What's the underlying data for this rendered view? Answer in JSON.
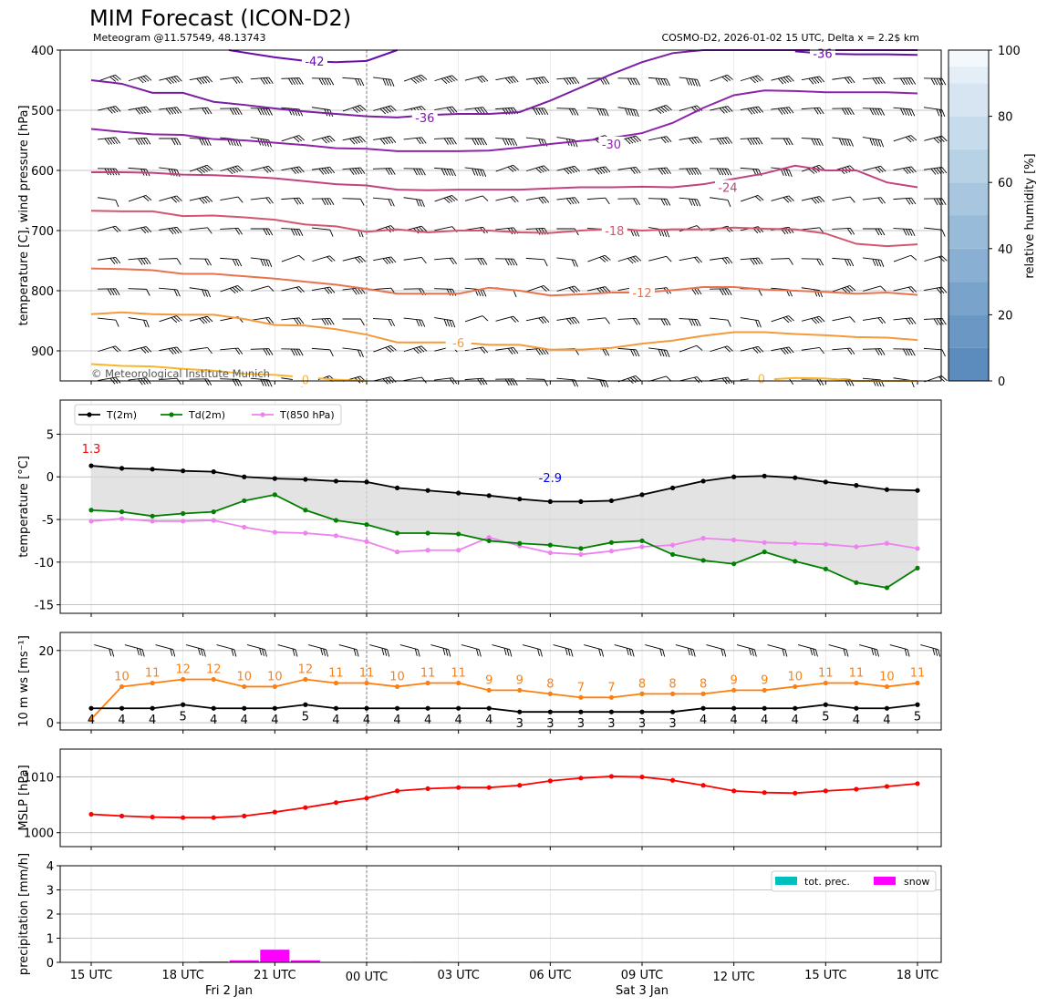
{
  "header": {
    "title": "MIM Forecast (ICON-D2)",
    "subtitle": "Meteogram @11.57549, 48.13743",
    "model_info": "COSMO-D2, 2026-01-02 15 UTC, Delta x = 2.2$ km",
    "copyright": "© Meteorological Institute Munich"
  },
  "time_axis": {
    "hours": [
      15,
      16,
      17,
      18,
      19,
      20,
      21,
      22,
      23,
      24,
      25,
      26,
      27,
      28,
      29,
      30,
      31,
      32,
      33,
      34,
      35,
      36,
      37,
      38,
      39,
      40,
      41,
      42
    ],
    "tick_hours": [
      15,
      18,
      21,
      24,
      27,
      30,
      33,
      36,
      39,
      42
    ],
    "tick_labels": [
      "15 UTC",
      "18 UTC",
      "21 UTC",
      "00 UTC",
      "03 UTC",
      "06 UTC",
      "09 UTC",
      "12 UTC",
      "15 UTC",
      "18 UTC"
    ],
    "day_labels": [
      {
        "hour": 19.5,
        "text": "Fri 2 Jan"
      },
      {
        "hour": 33,
        "text": "Sat 3 Jan"
      }
    ],
    "midnight_hour": 24
  },
  "colors": {
    "t2m": "#000000",
    "td2m": "#008000",
    "t850": "#ee82ee",
    "mslp": "#ff0000",
    "ws_gust": "#ff7f0e",
    "prec": "#00bfbf",
    "snow": "#ff00ff",
    "tmax_label": "#ff0000",
    "tmin_label": "#0000ff",
    "fill": "#d9d9d9",
    "grid": "#b0b0b0"
  },
  "chart_data": [
    {
      "type": "line",
      "panel": "upper_air",
      "title": "MIM Forecast (ICON-D2)",
      "ylabel": "temperature [C], wind pressure [hPa]",
      "ylim": [
        950,
        400
      ],
      "yticks": [
        400,
        500,
        600,
        700,
        800,
        900
      ],
      "isotherm_labels": [
        "-42",
        "-36",
        "-36",
        "-30",
        "-24",
        "-18",
        "-12",
        "-6",
        "0",
        "0"
      ],
      "isotherms": [
        {
          "label": "-42",
          "color": "#6a0dad",
          "x": [
            19.5,
            21,
            22,
            23,
            24,
            25
          ],
          "p": [
            400,
            412,
            418,
            420,
            418,
            400
          ]
        },
        {
          "label": "-36",
          "color": "#7b1fa2",
          "x": [
            15,
            16,
            17,
            18,
            19,
            20,
            21,
            22,
            23,
            24,
            25,
            26,
            27,
            28,
            29,
            30,
            31,
            32,
            33,
            34,
            35,
            36,
            37,
            38,
            39,
            40,
            41,
            42
          ],
          "p": [
            450,
            456,
            471,
            471,
            486,
            491,
            497,
            502,
            506,
            510,
            512,
            508,
            506,
            506,
            503,
            484,
            462,
            440,
            420,
            405,
            400,
            400,
            400,
            400,
            400,
            400,
            400,
            400
          ]
        },
        {
          "label": "-36",
          "color": "#6a0dad",
          "x": [
            38,
            39,
            40,
            41,
            42
          ],
          "p": [
            402,
            406,
            407,
            407,
            408
          ]
        },
        {
          "label": "-30",
          "color": "#8e24aa",
          "x": [
            15,
            16,
            17,
            18,
            19,
            20,
            21,
            22,
            23,
            24,
            25,
            26,
            27,
            28,
            29,
            30,
            31,
            32,
            33,
            34,
            35,
            36,
            37,
            38,
            39,
            40,
            41,
            42
          ],
          "p": [
            531,
            536,
            540,
            541,
            548,
            550,
            554,
            558,
            563,
            564,
            568,
            568,
            568,
            567,
            562,
            556,
            551,
            546,
            538,
            521,
            496,
            475,
            467,
            468,
            470,
            470,
            470,
            472
          ]
        },
        {
          "label": "-24",
          "color": "#c2417f",
          "x": [
            15,
            16,
            17,
            18,
            19,
            20,
            21,
            22,
            23,
            24,
            25,
            26,
            27,
            28,
            29,
            30,
            31,
            32,
            33,
            34,
            35,
            36,
            37,
            38,
            39,
            40,
            41,
            42
          ],
          "p": [
            603,
            603,
            604,
            607,
            608,
            610,
            613,
            618,
            623,
            625,
            632,
            633,
            632,
            632,
            632,
            630,
            628,
            628,
            627,
            628,
            623,
            614,
            605,
            592,
            600,
            600,
            620,
            628
          ]
        },
        {
          "label": "-18",
          "color": "#d1576e",
          "x": [
            15,
            16,
            17,
            18,
            19,
            20,
            21,
            22,
            23,
            24,
            25,
            26,
            27,
            28,
            29,
            30,
            31,
            32,
            33,
            34,
            35,
            36,
            37,
            38,
            39,
            40,
            41,
            42
          ],
          "p": [
            667,
            668,
            668,
            676,
            675,
            678,
            682,
            690,
            693,
            702,
            698,
            703,
            700,
            700,
            703,
            704,
            700,
            697,
            700,
            698,
            698,
            695,
            697,
            698,
            705,
            722,
            726,
            723
          ]
        },
        {
          "label": "-12",
          "color": "#e8734f",
          "x": [
            15,
            16,
            17,
            18,
            19,
            20,
            21,
            22,
            23,
            24,
            25,
            26,
            27,
            28,
            29,
            30,
            31,
            32,
            33,
            34,
            35,
            36,
            37,
            38,
            39,
            40,
            41,
            42
          ],
          "p": [
            763,
            764,
            766,
            772,
            772,
            776,
            780,
            785,
            790,
            797,
            805,
            805,
            805,
            795,
            800,
            808,
            806,
            803,
            803,
            799,
            794,
            794,
            798,
            800,
            802,
            805,
            803,
            807
          ]
        },
        {
          "label": "-6",
          "color": "#f59a3a",
          "x": [
            15,
            16,
            17,
            18,
            19,
            20,
            21,
            22,
            23,
            24,
            25,
            26,
            27,
            28,
            29,
            30,
            31,
            32,
            33,
            34,
            35,
            36,
            37,
            38,
            39,
            40,
            41,
            42
          ],
          "p": [
            839,
            836,
            839,
            840,
            840,
            847,
            857,
            858,
            864,
            873,
            886,
            886,
            886,
            890,
            890,
            898,
            898,
            895,
            888,
            883,
            875,
            869,
            869,
            872,
            874,
            877,
            878,
            882
          ]
        },
        {
          "label": "0",
          "color": "#f8b52e",
          "x": [
            15,
            16,
            17,
            18,
            19,
            20,
            21,
            22,
            23,
            24
          ],
          "p": [
            922,
            925,
            926,
            930,
            933,
            938,
            940,
            944,
            948,
            950
          ]
        },
        {
          "label": "0",
          "color": "#f8b52e",
          "x": [
            37,
            38,
            39,
            40,
            41,
            42
          ],
          "p": [
            948,
            945,
            946,
            950,
            950,
            950
          ]
        }
      ],
      "wind_barb_levels": [
        450,
        500,
        550,
        600,
        650,
        700,
        750,
        800,
        850,
        900,
        950
      ],
      "colorbar": {
        "label": "relative humidity [%]",
        "ticks": [
          0,
          20,
          40,
          60,
          80,
          100
        ]
      }
    },
    {
      "type": "line",
      "panel": "temperature",
      "ylabel": "temperature [$^\\circ$C]",
      "ylim": [
        -16,
        9
      ],
      "yticks": [
        -15,
        -10,
        -5,
        0,
        5
      ],
      "legend": [
        "T(2m)",
        "Td(2m)",
        "T(850 hPa)"
      ],
      "tmax_label": "1.3",
      "tmin_label": "-2.9",
      "series": [
        {
          "name": "T(2m)",
          "values": [
            1.3,
            1.0,
            0.9,
            0.7,
            0.6,
            0.0,
            -0.2,
            -0.3,
            -0.5,
            -0.6,
            -1.3,
            -1.6,
            -1.9,
            -2.2,
            -2.6,
            -2.9,
            -2.9,
            -2.8,
            -2.1,
            -1.3,
            -0.5,
            0.0,
            0.1,
            -0.1,
            -0.6,
            -1.0,
            -1.5,
            -1.6
          ]
        },
        {
          "name": "Td(2m)",
          "values": [
            -3.9,
            -4.1,
            -4.6,
            -4.3,
            -4.1,
            -2.8,
            -2.1,
            -3.9,
            -5.1,
            -5.6,
            -6.6,
            -6.6,
            -6.7,
            -7.5,
            -7.8,
            -8.0,
            -8.4,
            -7.7,
            -7.5,
            -9.1,
            -9.8,
            -10.2,
            -8.8,
            -9.9,
            -10.8,
            -12.4,
            -13.0,
            -10.7
          ]
        },
        {
          "name": "T(850 hPa)",
          "values": [
            -5.2,
            -4.9,
            -5.2,
            -5.2,
            -5.1,
            -5.9,
            -6.5,
            -6.6,
            -6.9,
            -7.6,
            -8.8,
            -8.6,
            -8.6,
            -7.1,
            -8.1,
            -8.9,
            -9.1,
            -8.7,
            -8.2,
            -8.0,
            -7.2,
            -7.4,
            -7.7,
            -7.8,
            -7.9,
            -8.2,
            -7.8,
            -8.4
          ]
        }
      ]
    },
    {
      "type": "line",
      "panel": "wind",
      "ylabel": "10 m ws [ms$^{-1}$]",
      "ylim": [
        -2,
        25
      ],
      "yticks": [
        0,
        20
      ],
      "series": [
        {
          "name": "gust",
          "values": [
            1,
            10,
            11,
            12,
            12,
            10,
            10,
            12,
            11,
            11,
            10,
            11,
            11,
            9,
            9,
            8,
            7,
            7,
            8,
            8,
            8,
            9,
            9,
            10,
            11,
            11,
            10,
            11
          ],
          "labels": [
            "",
            "10",
            "11",
            "12",
            "12",
            "10",
            "10",
            "12",
            "11",
            "11",
            "10",
            "11",
            "11",
            "9",
            "9",
            "8",
            "7",
            "7",
            "8",
            "8",
            "8",
            "9",
            "9",
            "10",
            "11",
            "11",
            "10",
            "11"
          ]
        },
        {
          "name": "ws",
          "values": [
            4,
            4,
            4,
            5,
            4,
            4,
            4,
            5,
            4,
            4,
            4,
            4,
            4,
            4,
            3,
            3,
            3,
            3,
            3,
            3,
            4,
            4,
            4,
            4,
            5,
            4,
            4,
            5
          ],
          "labels": [
            "4",
            "4",
            "4",
            "5",
            "4",
            "4",
            "4",
            "5",
            "4",
            "4",
            "4",
            "4",
            "4",
            "4",
            "3",
            "3",
            "3",
            "3",
            "3",
            "3",
            "4",
            "4",
            "4",
            "4",
            "5",
            "4",
            "4",
            "5"
          ]
        }
      ]
    },
    {
      "type": "line",
      "panel": "mslp",
      "ylabel": "MSLP [hPa]",
      "ylim": [
        997.5,
        1015
      ],
      "yticks": [
        1000,
        1010
      ],
      "series": [
        {
          "name": "MSLP",
          "values": [
            1003.3,
            1003.0,
            1002.8,
            1002.7,
            1002.7,
            1003.0,
            1003.7,
            1004.5,
            1005.4,
            1006.2,
            1007.5,
            1007.9,
            1008.1,
            1008.1,
            1008.5,
            1009.3,
            1009.8,
            1010.1,
            1010.0,
            1009.4,
            1008.5,
            1007.5,
            1007.2,
            1007.1,
            1007.5,
            1007.8,
            1008.3,
            1008.8
          ]
        }
      ]
    },
    {
      "type": "bar",
      "panel": "precipitation",
      "ylabel": "precipitation [mm/h]",
      "ylim": [
        0,
        4
      ],
      "yticks": [
        0,
        1,
        2,
        3,
        4
      ],
      "legend": [
        "tot. prec.",
        "snow"
      ],
      "x": [
        19,
        20,
        21,
        22,
        26
      ],
      "series": [
        {
          "name": "tot. prec.",
          "values": [
            0.03,
            0.08,
            0.52,
            0.08,
            0.02
          ]
        },
        {
          "name": "snow",
          "values": [
            0.03,
            0.08,
            0.52,
            0.08,
            0.02
          ]
        }
      ]
    }
  ]
}
